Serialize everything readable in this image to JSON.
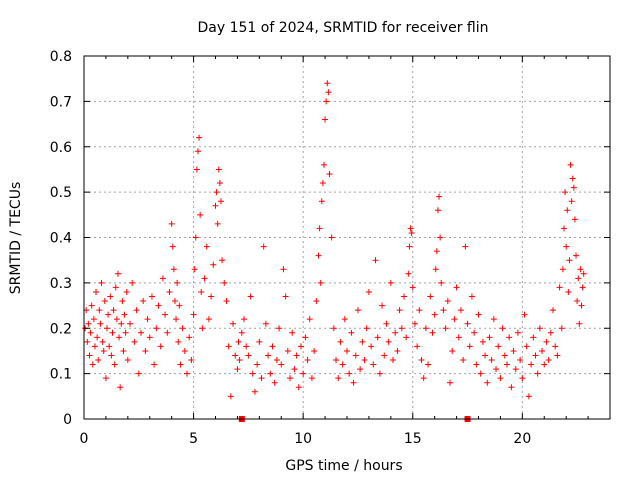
{
  "chart_data": {
    "type": "scatter",
    "title": "Day 151 of 2024, SRMTID for receiver flin",
    "xlabel": "GPS time / hours",
    "ylabel": "SRMTID / TECUs",
    "xlim": [
      0,
      24
    ],
    "ylim": [
      0,
      0.8
    ],
    "xticks": [
      0,
      5,
      10,
      15,
      20
    ],
    "xtick_labels": [
      "0",
      "5",
      "10",
      "15",
      "20"
    ],
    "yticks": [
      0,
      0.1,
      0.2,
      0.3,
      0.4,
      0.5,
      0.6,
      0.7,
      0.8
    ],
    "ytick_labels": [
      "0",
      "0.1",
      "0.2",
      "0.3",
      "0.4",
      "0.5",
      "0.6",
      "0.7",
      "0.8"
    ],
    "grid": true,
    "marker": "plus",
    "color": "#ff0000",
    "series": [
      {
        "name": "SRMTID",
        "points": [
          [
            0.05,
            0.2
          ],
          [
            0.1,
            0.24
          ],
          [
            0.15,
            0.17
          ],
          [
            0.2,
            0.21
          ],
          [
            0.25,
            0.14
          ],
          [
            0.3,
            0.19
          ],
          [
            0.35,
            0.25
          ],
          [
            0.4,
            0.12
          ],
          [
            0.45,
            0.22
          ],
          [
            0.5,
            0.16
          ],
          [
            0.55,
            0.28
          ],
          [
            0.6,
            0.18
          ],
          [
            0.65,
            0.13
          ],
          [
            0.7,
            0.24
          ],
          [
            0.75,
            0.21
          ],
          [
            0.8,
            0.3
          ],
          [
            0.85,
            0.17
          ],
          [
            0.9,
            0.15
          ],
          [
            0.95,
            0.26
          ],
          [
            1.0,
            0.09
          ],
          [
            1.05,
            0.2
          ],
          [
            1.1,
            0.23
          ],
          [
            1.15,
            0.16
          ],
          [
            1.2,
            0.27
          ],
          [
            1.25,
            0.14
          ],
          [
            1.3,
            0.19
          ],
          [
            1.35,
            0.24
          ],
          [
            1.4,
            0.12
          ],
          [
            1.45,
            0.29
          ],
          [
            1.5,
            0.22
          ],
          [
            1.55,
            0.32
          ],
          [
            1.6,
            0.18
          ],
          [
            1.65,
            0.07
          ],
          [
            1.7,
            0.21
          ],
          [
            1.75,
            0.26
          ],
          [
            1.8,
            0.15
          ],
          [
            1.85,
            0.23
          ],
          [
            1.9,
            0.19
          ],
          [
            1.95,
            0.28
          ],
          [
            2.0,
            0.13
          ],
          [
            2.1,
            0.21
          ],
          [
            2.2,
            0.3
          ],
          [
            2.3,
            0.17
          ],
          [
            2.4,
            0.24
          ],
          [
            2.5,
            0.1
          ],
          [
            2.6,
            0.19
          ],
          [
            2.7,
            0.26
          ],
          [
            2.8,
            0.15
          ],
          [
            2.9,
            0.22
          ],
          [
            3.0,
            0.18
          ],
          [
            3.1,
            0.27
          ],
          [
            3.2,
            0.12
          ],
          [
            3.3,
            0.2
          ],
          [
            3.4,
            0.25
          ],
          [
            3.5,
            0.16
          ],
          [
            3.6,
            0.31
          ],
          [
            3.7,
            0.23
          ],
          [
            3.8,
            0.19
          ],
          [
            3.9,
            0.28
          ],
          [
            4.0,
            0.43
          ],
          [
            4.05,
            0.38
          ],
          [
            4.1,
            0.33
          ],
          [
            4.15,
            0.26
          ],
          [
            4.2,
            0.22
          ],
          [
            4.25,
            0.3
          ],
          [
            4.3,
            0.17
          ],
          [
            4.35,
            0.25
          ],
          [
            4.4,
            0.12
          ],
          [
            4.5,
            0.2
          ],
          [
            4.6,
            0.15
          ],
          [
            4.7,
            0.1
          ],
          [
            4.8,
            0.18
          ],
          [
            4.9,
            0.13
          ],
          [
            5.0,
            0.23
          ],
          [
            5.05,
            0.33
          ],
          [
            5.1,
            0.4
          ],
          [
            5.15,
            0.55
          ],
          [
            5.2,
            0.59
          ],
          [
            5.25,
            0.62
          ],
          [
            5.3,
            0.45
          ],
          [
            5.35,
            0.28
          ],
          [
            5.4,
            0.2
          ],
          [
            5.5,
            0.31
          ],
          [
            5.6,
            0.38
          ],
          [
            5.7,
            0.22
          ],
          [
            5.8,
            0.27
          ],
          [
            5.9,
            0.34
          ],
          [
            6.0,
            0.47
          ],
          [
            6.05,
            0.5
          ],
          [
            6.1,
            0.43
          ],
          [
            6.15,
            0.55
          ],
          [
            6.2,
            0.52
          ],
          [
            6.25,
            0.48
          ],
          [
            6.3,
            0.35
          ],
          [
            6.4,
            0.3
          ],
          [
            6.5,
            0.26
          ],
          [
            6.6,
            0.16
          ],
          [
            6.7,
            0.05
          ],
          [
            6.8,
            0.21
          ],
          [
            6.9,
            0.14
          ],
          [
            7.0,
            0.11
          ],
          [
            7.05,
            0.17
          ],
          [
            7.1,
            0.13
          ],
          [
            7.2,
            0.19
          ],
          [
            7.3,
            0.22
          ],
          [
            7.4,
            0.16
          ],
          [
            7.5,
            0.14
          ],
          [
            7.6,
            0.27
          ],
          [
            7.7,
            0.1
          ],
          [
            7.8,
            0.06
          ],
          [
            7.9,
            0.12
          ],
          [
            8.0,
            0.17
          ],
          [
            8.1,
            0.09
          ],
          [
            8.2,
            0.38
          ],
          [
            8.3,
            0.21
          ],
          [
            8.4,
            0.14
          ],
          [
            8.5,
            0.1
          ],
          [
            8.6,
            0.16
          ],
          [
            8.7,
            0.08
          ],
          [
            8.8,
            0.13
          ],
          [
            8.9,
            0.2
          ],
          [
            9.0,
            0.12
          ],
          [
            9.1,
            0.33
          ],
          [
            9.2,
            0.27
          ],
          [
            9.3,
            0.15
          ],
          [
            9.4,
            0.09
          ],
          [
            9.5,
            0.19
          ],
          [
            9.6,
            0.11
          ],
          [
            9.7,
            0.14
          ],
          [
            9.8,
            0.07
          ],
          [
            9.9,
            0.16
          ],
          [
            10.0,
            0.1
          ],
          [
            10.1,
            0.18
          ],
          [
            10.2,
            0.13
          ],
          [
            10.3,
            0.22
          ],
          [
            10.4,
            0.09
          ],
          [
            10.5,
            0.15
          ],
          [
            10.6,
            0.26
          ],
          [
            10.7,
            0.36
          ],
          [
            10.75,
            0.42
          ],
          [
            10.8,
            0.3
          ],
          [
            10.85,
            0.48
          ],
          [
            10.9,
            0.52
          ],
          [
            10.95,
            0.56
          ],
          [
            11.0,
            0.66
          ],
          [
            11.05,
            0.7
          ],
          [
            11.1,
            0.74
          ],
          [
            11.15,
            0.72
          ],
          [
            11.2,
            0.54
          ],
          [
            11.3,
            0.4
          ],
          [
            11.4,
            0.2
          ],
          [
            11.5,
            0.13
          ],
          [
            11.6,
            0.09
          ],
          [
            11.7,
            0.17
          ],
          [
            11.8,
            0.12
          ],
          [
            11.9,
            0.22
          ],
          [
            12.0,
            0.15
          ],
          [
            12.1,
            0.1
          ],
          [
            12.2,
            0.19
          ],
          [
            12.3,
            0.08
          ],
          [
            12.4,
            0.14
          ],
          [
            12.5,
            0.24
          ],
          [
            12.6,
            0.11
          ],
          [
            12.7,
            0.17
          ],
          [
            12.8,
            0.13
          ],
          [
            12.9,
            0.2
          ],
          [
            13.0,
            0.28
          ],
          [
            13.1,
            0.16
          ],
          [
            13.2,
            0.12
          ],
          [
            13.3,
            0.35
          ],
          [
            13.4,
            0.18
          ],
          [
            13.5,
            0.1
          ],
          [
            13.6,
            0.25
          ],
          [
            13.7,
            0.14
          ],
          [
            13.8,
            0.21
          ],
          [
            13.9,
            0.17
          ],
          [
            14.0,
            0.3
          ],
          [
            14.1,
            0.13
          ],
          [
            14.2,
            0.19
          ],
          [
            14.3,
            0.15
          ],
          [
            14.4,
            0.24
          ],
          [
            14.5,
            0.2
          ],
          [
            14.6,
            0.27
          ],
          [
            14.7,
            0.18
          ],
          [
            14.8,
            0.32
          ],
          [
            14.85,
            0.38
          ],
          [
            14.9,
            0.42
          ],
          [
            14.95,
            0.41
          ],
          [
            15.0,
            0.29
          ],
          [
            15.1,
            0.21
          ],
          [
            15.2,
            0.16
          ],
          [
            15.3,
            0.24
          ],
          [
            15.4,
            0.13
          ],
          [
            15.5,
            0.09
          ],
          [
            15.6,
            0.2
          ],
          [
            15.7,
            0.12
          ],
          [
            15.8,
            0.27
          ],
          [
            15.9,
            0.19
          ],
          [
            16.0,
            0.23
          ],
          [
            16.05,
            0.33
          ],
          [
            16.1,
            0.37
          ],
          [
            16.15,
            0.46
          ],
          [
            16.2,
            0.49
          ],
          [
            16.25,
            0.4
          ],
          [
            16.3,
            0.3
          ],
          [
            16.4,
            0.24
          ],
          [
            16.5,
            0.2
          ],
          [
            16.6,
            0.26
          ],
          [
            16.7,
            0.08
          ],
          [
            16.8,
            0.15
          ],
          [
            16.9,
            0.22
          ],
          [
            17.0,
            0.29
          ],
          [
            17.1,
            0.18
          ],
          [
            17.2,
            0.24
          ],
          [
            17.3,
            0.13
          ],
          [
            17.4,
            0.38
          ],
          [
            17.5,
            0.21
          ],
          [
            17.6,
            0.16
          ],
          [
            17.7,
            0.27
          ],
          [
            17.8,
            0.19
          ],
          [
            17.9,
            0.12
          ],
          [
            18.0,
            0.23
          ],
          [
            18.1,
            0.1
          ],
          [
            18.2,
            0.17
          ],
          [
            18.3,
            0.14
          ],
          [
            18.4,
            0.08
          ],
          [
            18.5,
            0.18
          ],
          [
            18.6,
            0.13
          ],
          [
            18.7,
            0.22
          ],
          [
            18.8,
            0.11
          ],
          [
            18.9,
            0.16
          ],
          [
            19.0,
            0.09
          ],
          [
            19.1,
            0.2
          ],
          [
            19.2,
            0.14
          ],
          [
            19.3,
            0.12
          ],
          [
            19.4,
            0.18
          ],
          [
            19.5,
            0.07
          ],
          [
            19.6,
            0.15
          ],
          [
            19.7,
            0.11
          ],
          [
            19.8,
            0.19
          ],
          [
            19.9,
            0.13
          ],
          [
            20.0,
            0.09
          ],
          [
            20.1,
            0.23
          ],
          [
            20.2,
            0.16
          ],
          [
            20.3,
            0.05
          ],
          [
            20.4,
            0.12
          ],
          [
            20.5,
            0.18
          ],
          [
            20.6,
            0.14
          ],
          [
            20.7,
            0.1
          ],
          [
            20.8,
            0.2
          ],
          [
            20.9,
            0.15
          ],
          [
            21.0,
            0.12
          ],
          [
            21.1,
            0.17
          ],
          [
            21.2,
            0.13
          ],
          [
            21.3,
            0.19
          ],
          [
            21.4,
            0.24
          ],
          [
            21.5,
            0.16
          ],
          [
            21.6,
            0.14
          ],
          [
            21.7,
            0.29
          ],
          [
            21.8,
            0.2
          ],
          [
            21.85,
            0.33
          ],
          [
            21.9,
            0.42
          ],
          [
            21.95,
            0.5
          ],
          [
            22.0,
            0.38
          ],
          [
            22.05,
            0.46
          ],
          [
            22.1,
            0.28
          ],
          [
            22.15,
            0.35
          ],
          [
            22.2,
            0.56
          ],
          [
            22.25,
            0.48
          ],
          [
            22.3,
            0.53
          ],
          [
            22.35,
            0.51
          ],
          [
            22.4,
            0.44
          ],
          [
            22.45,
            0.36
          ],
          [
            22.5,
            0.26
          ],
          [
            22.55,
            0.31
          ],
          [
            22.6,
            0.21
          ],
          [
            22.65,
            0.33
          ],
          [
            22.7,
            0.25
          ],
          [
            22.75,
            0.29
          ],
          [
            22.8,
            0.32
          ]
        ]
      }
    ],
    "gap_markers": [
      [
        7.2,
        0.0
      ],
      [
        17.5,
        0.0
      ]
    ]
  }
}
